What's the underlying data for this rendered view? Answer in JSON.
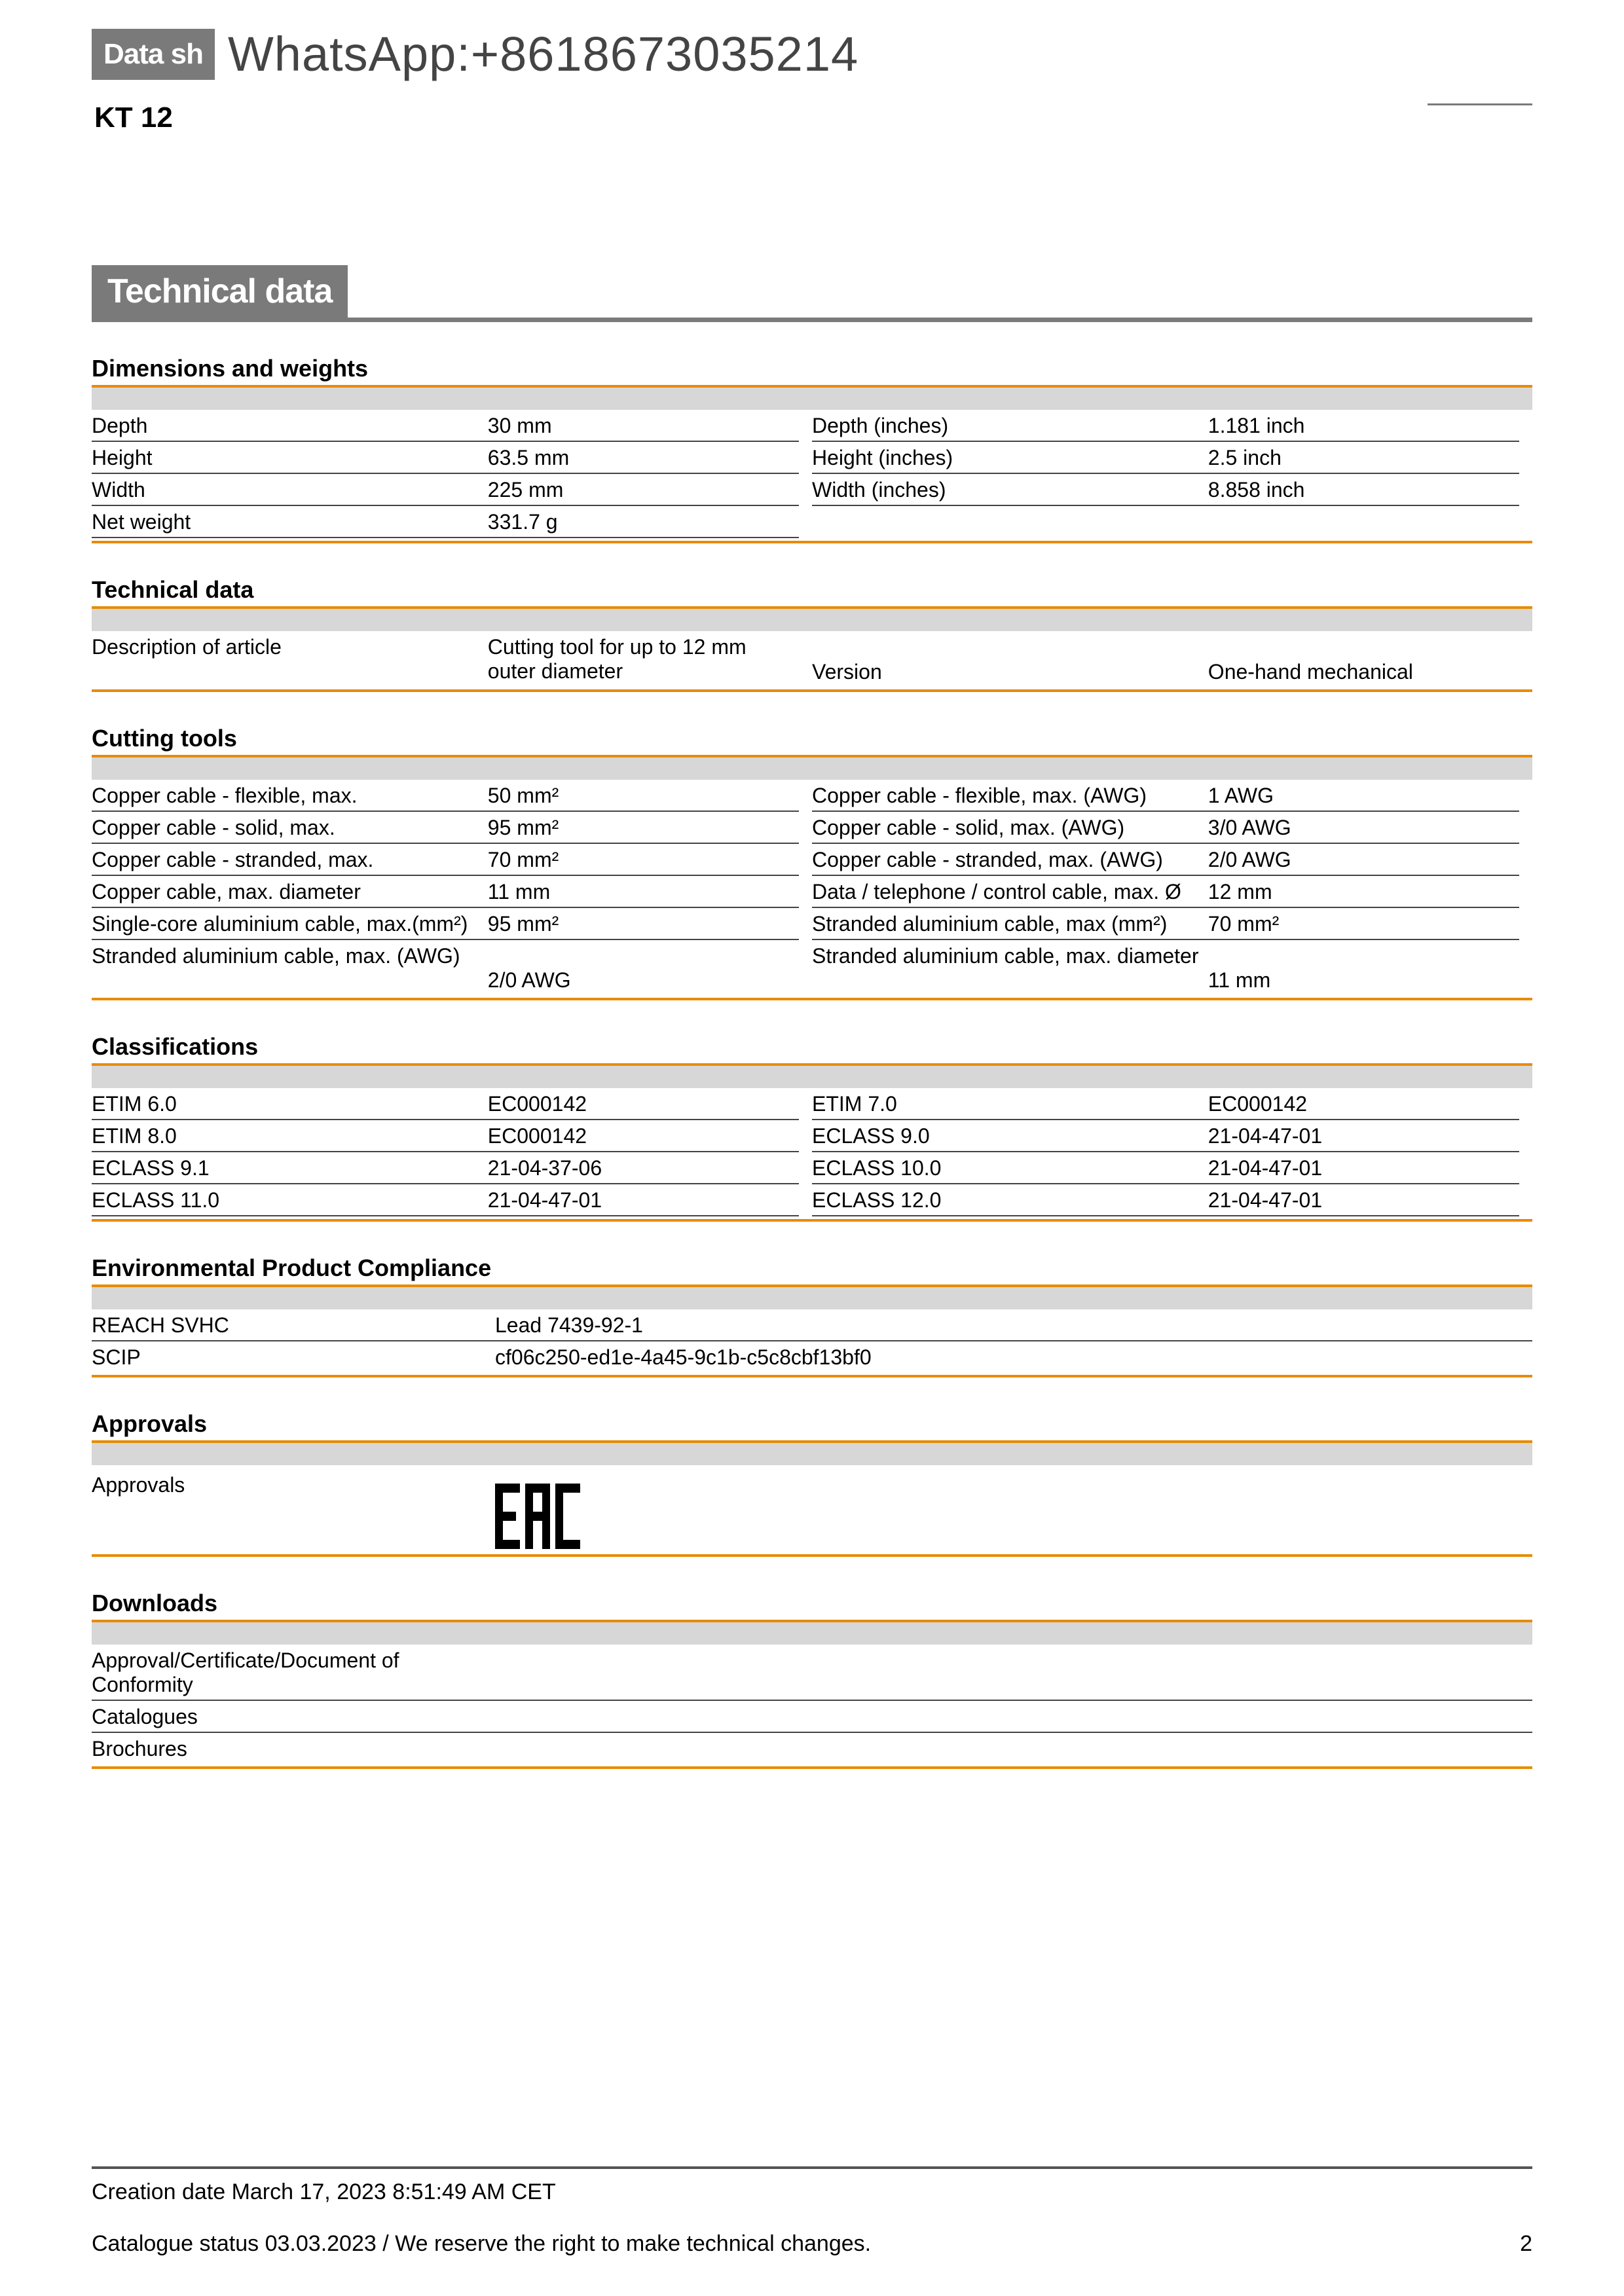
{
  "colors": {
    "orange": "#e88b00",
    "grey_bar": "#d7d7d7",
    "badge_grey": "#7a7a7a",
    "text": "#000000",
    "whatsapp_text": "#444444"
  },
  "header": {
    "badge": "Data sh",
    "whatsapp": "WhatsApp:+8618673035214",
    "product": "KT 12"
  },
  "main_title": "Technical data",
  "sections": [
    {
      "title": "Dimensions and weights",
      "two_col": true,
      "left": [
        {
          "label": "Depth",
          "value": "30 mm"
        },
        {
          "label": "Height",
          "value": "63.5 mm"
        },
        {
          "label": "Width",
          "value": "225 mm"
        },
        {
          "label": "Net weight",
          "value": "331.7 g"
        }
      ],
      "right": [
        {
          "label": "Depth (inches)",
          "value": "1.181 inch"
        },
        {
          "label": "Height (inches)",
          "value": "2.5 inch"
        },
        {
          "label": "Width (inches)",
          "value": "8.858 inch"
        }
      ]
    },
    {
      "title": "Technical data",
      "two_col": true,
      "left": [
        {
          "label": "Description of article",
          "value": "Cutting tool for up to 12 mm outer diameter",
          "no_border": true
        }
      ],
      "right": [
        {
          "label": "Version",
          "value": "One-hand mechanical",
          "no_border": true,
          "value_align_bottom": true
        }
      ]
    },
    {
      "title": "Cutting tools",
      "two_col": true,
      "left": [
        {
          "label": "Copper cable - flexible, max.",
          "value": "50 mm²"
        },
        {
          "label": "Copper cable - solid, max.",
          "value": "95 mm²"
        },
        {
          "label": "Copper cable - stranded, max.",
          "value": "70 mm²"
        },
        {
          "label": "Copper cable, max. diameter",
          "value": "11 mm"
        },
        {
          "label": "Single-core aluminium cable, max.(mm²)",
          "value": "95 mm²"
        },
        {
          "label": "Stranded aluminium cable, max. (AWG)",
          "value": "2/0 AWG",
          "no_border": true,
          "value_below": true
        }
      ],
      "right": [
        {
          "label": "Copper cable - flexible, max. (AWG)",
          "value": "1 AWG"
        },
        {
          "label": "Copper cable - solid, max. (AWG)",
          "value": "3/0 AWG"
        },
        {
          "label": "Copper cable - stranded, max. (AWG)",
          "value": "2/0 AWG"
        },
        {
          "label": "Data / telephone / control cable, max. Ø",
          "value": "12 mm"
        },
        {
          "label": "Stranded aluminium cable, max (mm²)",
          "value": "70 mm²"
        },
        {
          "label": "Stranded aluminium cable, max. diameter",
          "value": "11 mm",
          "no_border": true,
          "value_below": true
        }
      ]
    },
    {
      "title": "Classifications",
      "two_col": true,
      "left": [
        {
          "label": "ETIM 6.0",
          "value": "EC000142"
        },
        {
          "label": "ETIM 8.0",
          "value": "EC000142"
        },
        {
          "label": "ECLASS 9.1",
          "value": "21-04-37-06"
        },
        {
          "label": "ECLASS 11.0",
          "value": "21-04-47-01"
        }
      ],
      "right": [
        {
          "label": "ETIM 7.0",
          "value": "EC000142"
        },
        {
          "label": "ECLASS 9.0",
          "value": "21-04-47-01"
        },
        {
          "label": "ECLASS 10.0",
          "value": "21-04-47-01"
        },
        {
          "label": "ECLASS 12.0",
          "value": "21-04-47-01"
        }
      ]
    },
    {
      "title": "Environmental Product Compliance",
      "single_col": true,
      "rows": [
        {
          "label": "REACH SVHC",
          "value": "Lead 7439-92-1"
        },
        {
          "label": "SCIP",
          "value": "cf06c250-ed1e-4a45-9c1b-c5c8cbf13bf0",
          "no_border": true
        }
      ]
    },
    {
      "title": "Approvals",
      "approvals": true,
      "label": "Approvals"
    },
    {
      "title": "Downloads",
      "single_col": true,
      "rows": [
        {
          "label": "Approval/Certificate/Document of Conformity",
          "value": ""
        },
        {
          "label": "Catalogues",
          "value": ""
        },
        {
          "label": "Brochures",
          "value": "",
          "no_border": true
        }
      ]
    }
  ],
  "footer": {
    "creation": "Creation date March 17, 2023 8:51:49 AM CET",
    "status": "Catalogue status 03.03.2023 / We reserve the right to make technical changes.",
    "page": "2"
  }
}
